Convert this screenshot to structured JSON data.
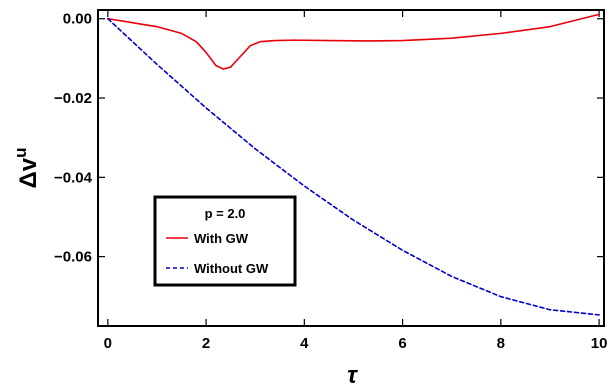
{
  "chart_data": {
    "type": "line",
    "title": "",
    "xlabel": "τ",
    "ylabel_main": "Δv",
    "ylabel_sup": "u",
    "xlim": [
      -0.2,
      10.1
    ],
    "ylim": [
      -0.0775,
      0.0022
    ],
    "xticks": [
      0,
      2,
      4,
      6,
      8,
      10
    ],
    "xtick_labels": [
      "0",
      "2",
      "4",
      "6",
      "8",
      "10"
    ],
    "yticks": [
      0.0,
      -0.02,
      -0.04,
      -0.06
    ],
    "ytick_labels": [
      "0.00",
      "−0.02",
      "−0.04",
      "−0.06"
    ],
    "grid": false,
    "legend": {
      "placement": "lower-left",
      "title": "p = 2.0"
    },
    "series": [
      {
        "name": "With GW",
        "color": "#e8000b",
        "dash": "solid",
        "x": [
          0,
          0.5,
          1.0,
          1.5,
          1.8,
          2.0,
          2.2,
          2.35,
          2.5,
          2.7,
          2.9,
          3.1,
          3.4,
          3.8,
          4.5,
          5.3,
          6.0,
          7.0,
          8.0,
          9.0,
          10.0
        ],
        "y": [
          0.0,
          -0.001,
          -0.002,
          -0.0037,
          -0.0058,
          -0.0085,
          -0.0118,
          -0.0127,
          -0.0122,
          -0.0095,
          -0.0068,
          -0.0058,
          -0.0055,
          -0.0054,
          -0.0055,
          -0.0056,
          -0.0055,
          -0.0049,
          -0.0037,
          -0.002,
          0.0011
        ]
      },
      {
        "name": "Without GW",
        "color": "#0000cc",
        "dash": "dashed",
        "x": [
          0,
          1,
          2,
          3,
          4,
          5,
          6,
          7,
          8,
          9,
          10
        ],
        "y": [
          0.0,
          -0.0115,
          -0.0225,
          -0.0328,
          -0.0422,
          -0.0508,
          -0.0584,
          -0.065,
          -0.0701,
          -0.0734,
          -0.0747
        ]
      }
    ]
  }
}
